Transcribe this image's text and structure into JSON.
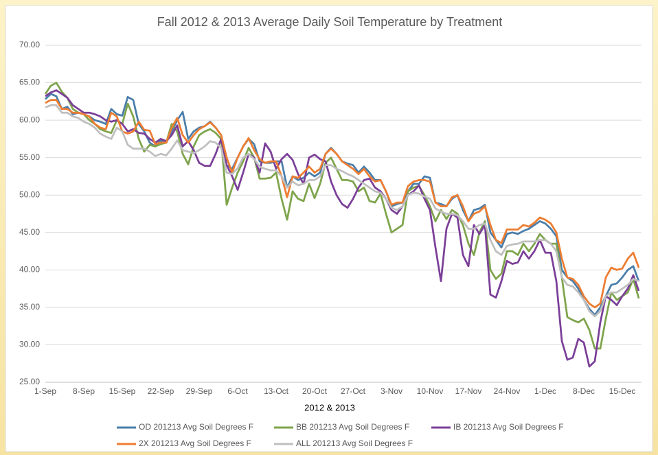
{
  "chart_data": {
    "type": "line",
    "title": "Fall 2012 & 2013 Average Daily Soil Temperature by Treatment",
    "x_label": "2012 & 2013",
    "categories": [
      "1-Sep",
      null,
      null,
      null,
      null,
      null,
      null,
      "8-Sep",
      null,
      null,
      null,
      null,
      null,
      null,
      "15-Sep",
      null,
      null,
      null,
      null,
      null,
      null,
      "22-Sep",
      null,
      null,
      null,
      null,
      null,
      null,
      "29-Sep",
      null,
      null,
      null,
      null,
      null,
      null,
      "6-Oct",
      null,
      null,
      null,
      null,
      null,
      null,
      "13-Oct",
      null,
      null,
      null,
      null,
      null,
      null,
      "20-Oct",
      null,
      null,
      null,
      null,
      null,
      null,
      "27-Oct",
      null,
      null,
      null,
      null,
      null,
      null,
      "3-Nov",
      null,
      null,
      null,
      null,
      null,
      null,
      "10-Nov",
      null,
      null,
      null,
      null,
      null,
      null,
      "17-Nov",
      null,
      null,
      null,
      null,
      null,
      null,
      "24-Nov",
      null,
      null,
      null,
      null,
      null,
      null,
      "1-Dec",
      null,
      null,
      null,
      null,
      null,
      null,
      "8-Dec",
      null,
      null,
      null,
      null,
      null,
      null,
      "15-Dec",
      null,
      null,
      null
    ],
    "ylim": [
      25,
      70
    ],
    "yticks": [
      {
        "value": 25,
        "label": "25.00"
      },
      {
        "value": 30,
        "label": "30.00"
      },
      {
        "value": 35,
        "label": "35.00"
      },
      {
        "value": 40,
        "label": "40.00"
      },
      {
        "value": 45,
        "label": "45.00"
      },
      {
        "value": 50,
        "label": "50.00"
      },
      {
        "value": 55,
        "label": "55.00"
      },
      {
        "value": 60,
        "label": "60.00"
      },
      {
        "value": 65,
        "label": "65.00"
      },
      {
        "value": 70,
        "label": "70.00"
      }
    ],
    "grid": true,
    "legend": "bottom",
    "series": [
      {
        "name": "OD 201213 Avg Soil Degrees F",
        "color": "#4a7eaa",
        "values": [
          62.8,
          63.5,
          63.2,
          61.5,
          61.8,
          60.8,
          61.0,
          60.8,
          60.5,
          60.0,
          59.8,
          59.5,
          61.5,
          60.8,
          60.6,
          63.1,
          62.7,
          59.5,
          58.5,
          57.0,
          56.5,
          57.3,
          57.0,
          58.5,
          60.0,
          61.1,
          57.5,
          58.5,
          59.0,
          59.2,
          59.8,
          59.0,
          58.0,
          54.0,
          53.5,
          55.0,
          56.5,
          57.5,
          56.8,
          54.5,
          54.3,
          54.3,
          54.5,
          54.5,
          51.0,
          52.5,
          52.0,
          52.3,
          53.0,
          52.5,
          53.0,
          55.5,
          56.3,
          55.5,
          54.5,
          54.2,
          54.0,
          53.0,
          53.8,
          53.0,
          52.0,
          52.0,
          50.5,
          48.5,
          48.8,
          49.0,
          50.5,
          51.5,
          51.5,
          52.5,
          52.3,
          49.0,
          48.8,
          48.5,
          49.5,
          50.0,
          48.0,
          46.5,
          48.0,
          48.2,
          48.7,
          45.0,
          44.0,
          43.0,
          44.8,
          45.0,
          44.8,
          45.2,
          45.5,
          46.0,
          46.5,
          46.2,
          45.5,
          44.5,
          40.0,
          39.0,
          38.5,
          37.5,
          36.0,
          34.8,
          34.0,
          35.0,
          36.5,
          38.0,
          38.2,
          39.0,
          40.0,
          40.5,
          38.5
        ]
      },
      {
        "name": "BB 201213 Avg Soil Degrees F",
        "color": "#7ea44c",
        "values": [
          63.5,
          64.6,
          65.0,
          63.8,
          63.0,
          61.5,
          61.0,
          60.8,
          60.0,
          59.5,
          58.8,
          58.5,
          58.3,
          60.0,
          59.5,
          62.2,
          60.5,
          57.5,
          55.8,
          56.7,
          56.5,
          56.8,
          57.0,
          59.5,
          58.5,
          55.5,
          54.1,
          56.5,
          58.0,
          58.5,
          58.8,
          58.3,
          57.5,
          48.7,
          51.0,
          53.0,
          54.5,
          56.3,
          55.0,
          52.2,
          52.2,
          52.3,
          53.0,
          49.5,
          46.7,
          50.5,
          49.5,
          49.2,
          51.5,
          49.6,
          51.5,
          54.3,
          55.0,
          53.5,
          52.0,
          52.0,
          51.8,
          50.5,
          51.0,
          49.2,
          49.0,
          50.2,
          47.5,
          45.0,
          45.5,
          46.0,
          50.5,
          51.0,
          51.2,
          50.0,
          48.5,
          46.5,
          48.0,
          46.8,
          48.0,
          47.5,
          46.0,
          43.5,
          42.0,
          45.0,
          46.5,
          40.0,
          38.8,
          39.5,
          42.5,
          42.5,
          42.0,
          43.5,
          42.5,
          43.5,
          44.8,
          44.0,
          43.5,
          43.5,
          39.0,
          33.7,
          33.3,
          33.0,
          33.5,
          32.0,
          29.5,
          29.5,
          33.5,
          37.0,
          36.0,
          36.5,
          37.0,
          38.8,
          36.2
        ]
      },
      {
        "name": "IB 201213 Avg Soil Degrees F",
        "color": "#7b3f98",
        "values": [
          63.2,
          63.7,
          64.0,
          63.5,
          63.0,
          62.0,
          61.5,
          61.0,
          61.0,
          60.8,
          60.5,
          60.0,
          59.8,
          60.0,
          59.5,
          58.5,
          58.8,
          58.3,
          58.2,
          57.5,
          57.0,
          57.5,
          57.2,
          58.0,
          59.3,
          56.5,
          57.2,
          56.0,
          54.3,
          53.9,
          53.9,
          55.5,
          57.5,
          54.0,
          52.5,
          50.7,
          53.0,
          55.5,
          55.0,
          53.0,
          56.9,
          55.8,
          53.5,
          54.8,
          55.5,
          54.7,
          52.8,
          51.5,
          55.0,
          55.4,
          54.8,
          54.5,
          51.8,
          50.0,
          48.8,
          48.3,
          49.5,
          51.0,
          52.0,
          52.2,
          51.0,
          50.5,
          49.5,
          48.0,
          47.5,
          48.5,
          50.0,
          50.5,
          51.3,
          49.5,
          48.0,
          43.0,
          38.5,
          45.5,
          47.5,
          47.0,
          42.0,
          40.5,
          46.0,
          44.8,
          46.0,
          36.7,
          36.3,
          38.5,
          41.2,
          40.8,
          41.0,
          42.5,
          41.5,
          42.5,
          44.0,
          42.3,
          42.3,
          38.5,
          30.5,
          28.0,
          28.3,
          30.8,
          30.3,
          27.1,
          27.8,
          33.0,
          36.5,
          36.0,
          35.3,
          36.5,
          37.5,
          39.3,
          37.2
        ]
      },
      {
        "name": "2X 201213 Avg Soil Degrees F",
        "color": "#ed7d31",
        "values": [
          62.3,
          62.7,
          62.7,
          61.5,
          61.5,
          61.0,
          61.0,
          60.8,
          60.5,
          59.5,
          59.0,
          58.8,
          61.0,
          60.5,
          58.5,
          58.2,
          58.5,
          59.8,
          58.7,
          58.6,
          56.8,
          57.0,
          57.0,
          59.0,
          60.3,
          58.0,
          57.0,
          58.0,
          58.8,
          59.2,
          59.7,
          59.0,
          58.0,
          55.0,
          53.0,
          55.0,
          56.5,
          57.6,
          56.0,
          54.8,
          54.3,
          54.5,
          54.5,
          52.5,
          49.7,
          52.5,
          52.3,
          53.0,
          53.8,
          53.0,
          53.5,
          55.5,
          56.2,
          55.5,
          54.5,
          54.0,
          53.5,
          52.8,
          53.5,
          52.5,
          51.8,
          52.0,
          50.5,
          48.7,
          49.0,
          49.0,
          51.2,
          51.8,
          52.0,
          52.0,
          51.8,
          49.0,
          48.5,
          48.5,
          49.7,
          50.0,
          48.5,
          46.5,
          47.5,
          47.8,
          48.5,
          46.0,
          44.0,
          43.6,
          45.4,
          45.4,
          45.4,
          46.0,
          45.8,
          46.3,
          47.0,
          46.7,
          46.2,
          45.0,
          41.5,
          39.0,
          38.8,
          38.0,
          36.5,
          35.5,
          35.0,
          35.5,
          39.0,
          40.3,
          40.0,
          40.2,
          41.5,
          42.3,
          40.3
        ]
      },
      {
        "name": "ALL 201213 Avg Soil Degrees F",
        "color": "#bfbfbf",
        "values": [
          61.7,
          62.0,
          62.0,
          61.0,
          61.0,
          60.5,
          60.3,
          59.8,
          59.5,
          59.0,
          58.2,
          57.8,
          57.5,
          59.0,
          58.5,
          56.7,
          56.2,
          56.2,
          56.2,
          55.8,
          55.2,
          55.5,
          55.3,
          56.2,
          57.3,
          56.0,
          55.8,
          55.6,
          56.0,
          56.5,
          57.2,
          57.0,
          56.3,
          53.0,
          52.8,
          53.6,
          55.0,
          55.5,
          54.8,
          53.8,
          53.5,
          53.3,
          53.3,
          52.5,
          51.0,
          51.8,
          51.3,
          51.5,
          52.0,
          52.0,
          52.5,
          54.0,
          54.0,
          53.5,
          53.2,
          52.8,
          52.5,
          52.0,
          51.5,
          51.0,
          50.5,
          50.3,
          49.5,
          48.3,
          48.0,
          48.5,
          50.0,
          50.3,
          50.2,
          49.8,
          49.5,
          48.2,
          47.8,
          47.5,
          47.5,
          47.3,
          46.5,
          45.5,
          45.5,
          46.0,
          46.2,
          44.0,
          42.5,
          42.0,
          43.2,
          43.4,
          43.5,
          43.8,
          43.8,
          43.8,
          44.0,
          44.0,
          43.5,
          42.5,
          39.0,
          38.0,
          37.8,
          37.0,
          36.0,
          34.5,
          33.8,
          34.5,
          36.5,
          37.0,
          37.0,
          37.5,
          38.0,
          38.8,
          38.5
        ]
      }
    ]
  }
}
